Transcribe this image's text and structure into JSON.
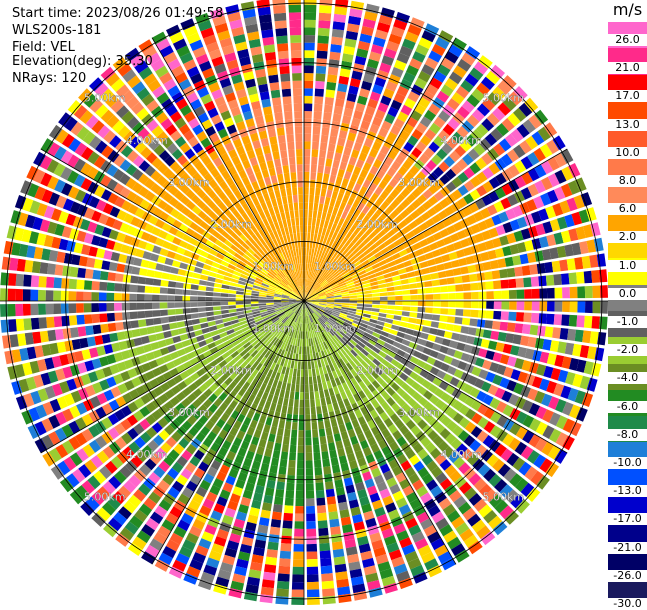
{
  "header": {
    "start_time": "Start time: 2023/08/26 01:49:58",
    "instrument": "WLS200s-181",
    "field": "Field: VEL",
    "elevation": "Elevation(deg): 35.30",
    "nrays": "NRays: 120"
  },
  "colorbar": {
    "unit": "m/s",
    "labels": [
      "26.0",
      "21.0",
      "17.0",
      "13.0",
      "10.0",
      "8.0",
      "6.0",
      "2.0",
      "1.0",
      "0.0",
      "-1.0",
      "-2.0",
      "-4.0",
      "-6.0",
      "-8.0",
      "-10.0",
      "-13.0",
      "-17.0",
      "-21.0",
      "-26.0",
      "-30.0"
    ],
    "colors": [
      "#ff66cc",
      "#ff2a8a",
      "#ff0000",
      "#ff4a00",
      "#ff5a2a",
      "#ff7a4a",
      "#ff8a5a",
      "#ffa500",
      "#ffd700",
      "#ffff00",
      "#808080",
      "#606060",
      "#9acd32",
      "#6b8e23",
      "#228b22",
      "#1f8a4a",
      "#1e7fd8",
      "#0050ff",
      "#0000cd",
      "#00008b",
      "#000066",
      "#1a1a5e"
    ]
  },
  "chart_data": {
    "type": "ppi",
    "field": "VEL",
    "units": "m/s",
    "nrays": 120,
    "elevation_deg": 35.3,
    "range_ring_labels": [
      "1.00km",
      "2.00km",
      "3.00km",
      "4.00km",
      "5.00km"
    ],
    "velocity_sectors": [
      {
        "direction": "north",
        "value": 8.0
      },
      {
        "direction": "north-northeast",
        "value": 6.0
      },
      {
        "direction": "east",
        "value": 1.0
      },
      {
        "direction": "west",
        "value": 1.0
      },
      {
        "direction": "near-center",
        "value": 0.0
      },
      {
        "direction": "south-west",
        "value": -2.0
      },
      {
        "direction": "south",
        "value": -6.0
      },
      {
        "direction": "south-center",
        "value": -10.0
      }
    ],
    "colorbar_ticks": [
      26.0,
      21.0,
      17.0,
      13.0,
      10.0,
      8.0,
      6.0,
      2.0,
      1.0,
      0.0,
      -1.0,
      -2.0,
      -4.0,
      -6.0,
      -8.0,
      -10.0,
      -13.0,
      -17.0,
      -21.0,
      -26.0,
      -30.0
    ]
  }
}
